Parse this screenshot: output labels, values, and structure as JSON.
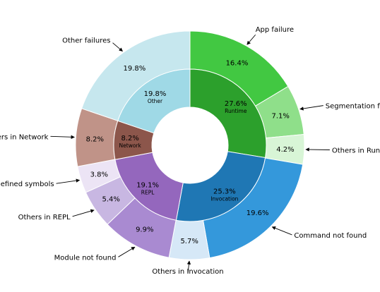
{
  "chart_data": {
    "type": "pie",
    "title": "",
    "inner": [
      {
        "pct": "27.6%",
        "name": "Runtime",
        "value": 27.6,
        "color": "#2ca02c"
      },
      {
        "pct": "25.3%",
        "name": "Invocation",
        "value": 25.3,
        "color": "#1f77b4"
      },
      {
        "pct": "19.1%",
        "name": "REPL",
        "value": 19.1,
        "color": "#9467bd"
      },
      {
        "pct": "8.2%",
        "name": "Network",
        "value": 8.2,
        "color": "#8c564b"
      },
      {
        "pct": "19.8%",
        "name": "Other",
        "value": 19.8,
        "color": "#9fd9e6"
      }
    ],
    "outer": [
      {
        "pct": "16.4%",
        "label": "App failure",
        "value": 16.4,
        "color": "#42c842",
        "anchor": "ne"
      },
      {
        "pct": "7.1%",
        "label": "Segmentation fault",
        "value": 7.1,
        "color": "#8fdf8a",
        "anchor": "e"
      },
      {
        "pct": "4.2%",
        "label": "Others in Runtime",
        "value": 4.2,
        "color": "#d8f5d6",
        "anchor": "e"
      },
      {
        "pct": "19.6%",
        "label": "Command not found",
        "value": 19.6,
        "color": "#3498db",
        "anchor": "se"
      },
      {
        "pct": "5.7%",
        "label": "Others in Invocation",
        "value": 5.7,
        "color": "#d6e8f7",
        "anchor": "s"
      },
      {
        "pct": "9.9%",
        "label": "Module not found",
        "value": 9.9,
        "color": "#a98ad1",
        "anchor": "sw"
      },
      {
        "pct": "5.4%",
        "label": "Others in REPL",
        "value": 5.4,
        "color": "#c8b7e2",
        "anchor": "sw"
      },
      {
        "pct": "3.8%",
        "label": "Undefined symbols",
        "value": 3.8,
        "color": "#ece4f5",
        "anchor": "w"
      },
      {
        "pct": "8.2%",
        "label": "Others in Network",
        "value": 8.2,
        "color": "#c09388",
        "anchor": "w"
      },
      {
        "pct": "19.8%",
        "label": "Other failures",
        "value": 19.8,
        "color": "#c6e7ee",
        "anchor": "nw"
      }
    ]
  }
}
